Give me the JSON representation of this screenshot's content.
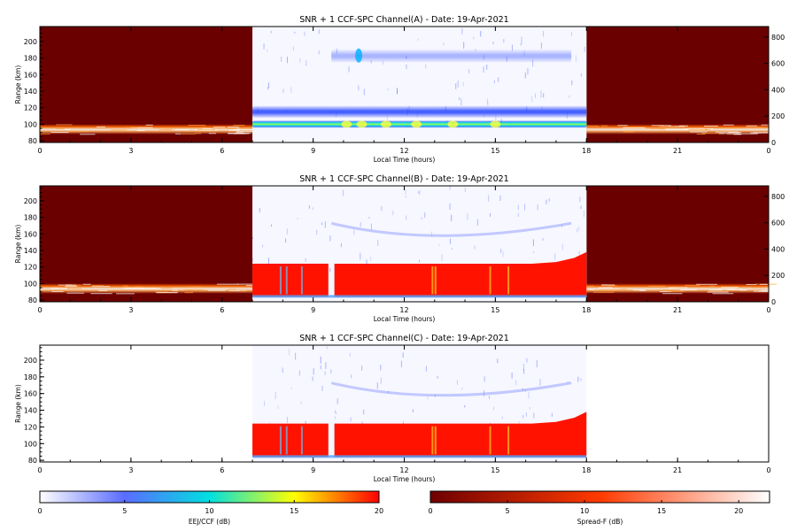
{
  "chart_data": [
    {
      "type": "heatmap",
      "title": "SNR + 1 CCF-SPC Channel(A) - Date: 19-Apr-2021",
      "xlabel": "Local Time (hours)",
      "ylabel": "Range (km)",
      "xlim": [
        0,
        24
      ],
      "ylim": [
        78,
        218
      ],
      "y2lim": [
        0,
        880
      ],
      "xticks": [
        "0",
        "3",
        "6",
        "9",
        "12",
        "15",
        "18",
        "21",
        "0"
      ],
      "yticks": [
        "80",
        "100",
        "120",
        "140",
        "160",
        "180",
        "200"
      ],
      "y2ticks": [
        "0",
        "200",
        "400",
        "600",
        "800"
      ],
      "night_spread_f": {
        "x_ranges": [
          [
            0,
            7
          ],
          [
            18,
            24
          ]
        ],
        "band_km": [
          88,
          100
        ],
        "colorbar": "Spread-F (dB)"
      },
      "day_eej": {
        "x_range": [
          7,
          18
        ],
        "colorbar": "EEJ/CCF (dB)",
        "layers": [
          {
            "x": [
              7,
              18
            ],
            "range_km": [
              96,
              104
            ],
            "peak_db": 11
          },
          {
            "x": [
              7,
              18
            ],
            "range_km": [
              108,
              122
            ],
            "peak_db": 6
          },
          {
            "x": [
              9.6,
              17.5
            ],
            "range_km": [
              175,
              190
            ],
            "peak_db": 4
          }
        ]
      }
    },
    {
      "type": "heatmap",
      "title": "SNR + 1 CCF-SPC Channel(B) - Date: 19-Apr-2021",
      "xlabel": "Local Time (hours)",
      "ylabel": "Range (km)",
      "xlim": [
        0,
        24
      ],
      "ylim": [
        78,
        218
      ],
      "y2lim": [
        0,
        880
      ],
      "xticks": [
        "0",
        "3",
        "6",
        "9",
        "12",
        "15",
        "18",
        "21",
        "0"
      ],
      "yticks": [
        "80",
        "100",
        "120",
        "140",
        "160",
        "180",
        "200"
      ],
      "y2ticks": [
        "0",
        "200",
        "400",
        "600",
        "800"
      ],
      "night_spread_f": {
        "x_ranges": [
          [
            0,
            7
          ],
          [
            18,
            24
          ]
        ],
        "band_km": [
          88,
          100
        ],
        "colorbar": "Spread-F (dB)"
      },
      "day_eej": {
        "x_range": [
          7,
          18
        ],
        "colorbar": "EEJ/CCF (dB)",
        "saturated_block": {
          "range_km": [
            84,
            124
          ],
          "value_db": 20,
          "gap_hours": [
            9.5,
            9.7
          ]
        },
        "faint_arc_km": [
          150,
          170
        ]
      }
    },
    {
      "type": "heatmap",
      "title": "SNR + 1 CCF-SPC Channel(C) - Date: 19-Apr-2021",
      "xlabel": "Local Time (hours)",
      "ylabel": "Range (km)",
      "xlim": [
        0,
        24
      ],
      "ylim": [
        78,
        218
      ],
      "xticks": [
        "0",
        "3",
        "6",
        "9",
        "12",
        "15",
        "18",
        "21",
        "0"
      ],
      "yticks": [
        "80",
        "100",
        "120",
        "140",
        "160",
        "180",
        "200"
      ],
      "day_eej": {
        "x_range": [
          7,
          18
        ],
        "colorbar": "EEJ/CCF (dB)",
        "saturated_block": {
          "range_km": [
            84,
            124
          ],
          "value_db": 20,
          "gap_hours": [
            9.5,
            9.7
          ]
        },
        "faint_arc_km": [
          150,
          170
        ]
      }
    }
  ],
  "colorbars": [
    {
      "label": "EEJ/CCF (dB)",
      "ticks": [
        "0",
        "5",
        "10",
        "15",
        "20"
      ],
      "range": [
        0,
        20
      ],
      "colors": [
        "#ffffff",
        "#5a6cff",
        "#00e0e0",
        "#ffff00",
        "#ff0000"
      ]
    },
    {
      "label": "Spread-F (dB)",
      "ticks": [
        "0",
        "5",
        "10",
        "15",
        "20"
      ],
      "range": [
        0,
        22
      ],
      "colors": [
        "#6e0000",
        "#ff3a00",
        "#ffffff"
      ]
    }
  ]
}
